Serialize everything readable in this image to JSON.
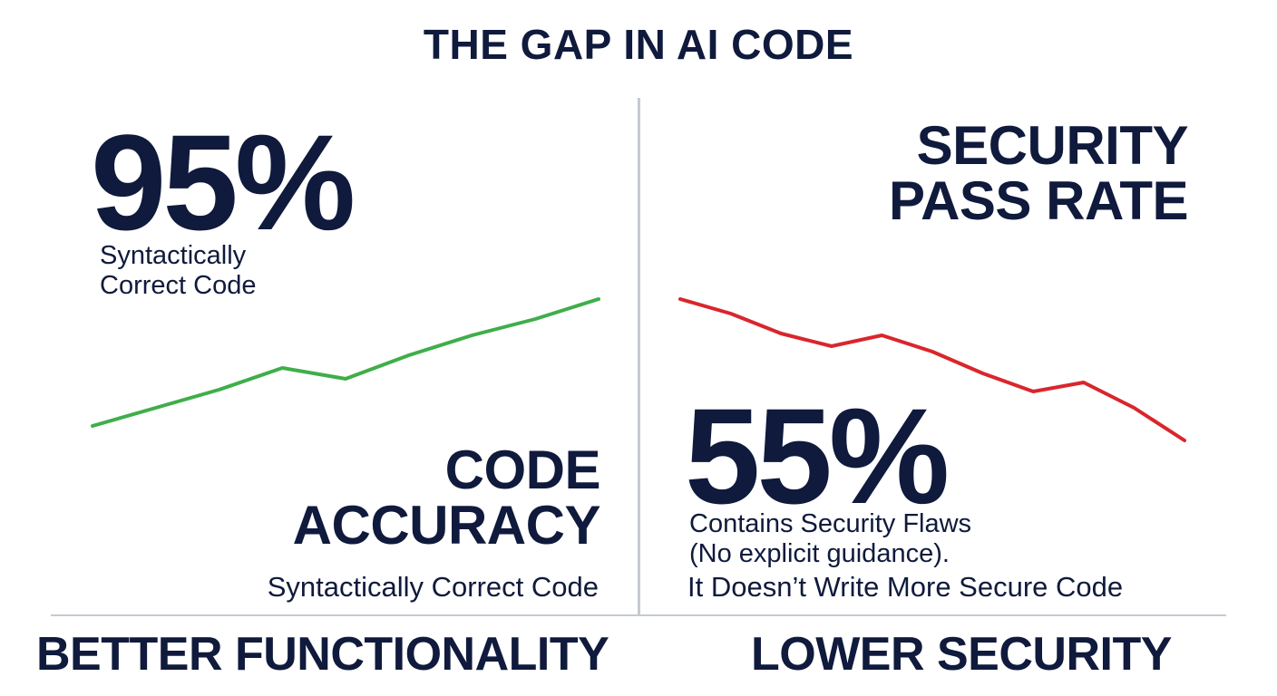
{
  "title": "THE GAP IN AI CODE",
  "left": {
    "percent": "95%",
    "subtitle_line1": "Syntactically",
    "subtitle_line2": "Correct Code",
    "heading_line1": "CODE",
    "heading_line2": "ACCURACY",
    "tagline": "Syntactically Correct Code",
    "footer": "BETTER FUNCTIONALITY"
  },
  "right": {
    "heading_line1": "SECURITY",
    "heading_line2": "PASS RATE",
    "percent": "55%",
    "subtitle_line1": "Contains Security Flaws",
    "subtitle_line2": "(No explicit guidance).",
    "tagline": "It Doesn’t Write More Secure Code",
    "footer": "LOWER SECURITY"
  },
  "colors": {
    "text": "#0f1a3c",
    "accuracy_line": "#3fae4a",
    "security_line": "#d9262c",
    "divider": "#c4cad3"
  },
  "chart_data": [
    {
      "type": "line",
      "title": "CODE ACCURACY",
      "x": [
        0,
        1,
        2,
        3,
        4,
        5,
        6,
        7,
        8
      ],
      "series": [
        {
          "values": [
            0.0,
            1.0,
            2.0,
            3.2,
            2.6,
            3.9,
            5.0,
            5.9,
            7.0
          ]
        }
      ],
      "ylim": [
        -5,
        12
      ],
      "grid": false,
      "legend": "none"
    },
    {
      "type": "line",
      "title": "SECURITY PASS RATE",
      "x": [
        0,
        1,
        2,
        3,
        4,
        5,
        6,
        7,
        8,
        9,
        10
      ],
      "series": [
        {
          "values": [
            7.0,
            6.2,
            5.1,
            4.4,
            5.0,
            4.1,
            2.9,
            1.9,
            2.4,
            1.0,
            -0.8
          ]
        }
      ],
      "ylim": [
        -5,
        12
      ],
      "grid": false,
      "legend": "none"
    }
  ]
}
